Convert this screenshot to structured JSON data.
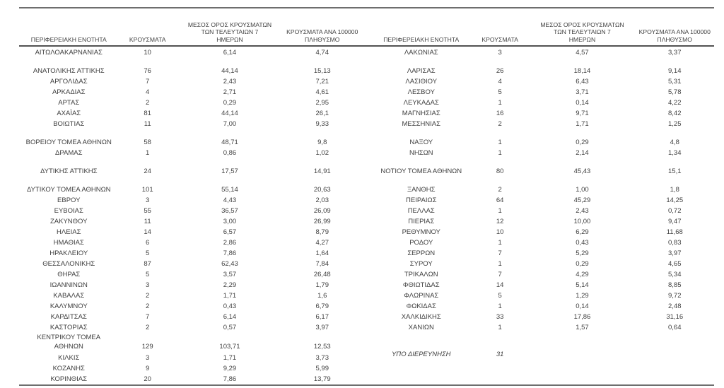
{
  "headers": {
    "region": "ΠΕΡΙΦΕΡΕΙΑΚΗ ΕΝΟΤΗΤΑ",
    "cases": "ΚΡΟΥΣΜΑΤΑ",
    "avg7": "ΜΕΣΟΣ ΟΡΟΣ ΚΡΟΥΣΜΑΤΩΝ\nΤΩΝ ΤΕΛΕΥΤΑΙΩΝ 7\nΗΜΕΡΩΝ",
    "per100k": "ΚΡΟΥΣΜΑΤΑ ΑΝΑ 100000\nΠΛΗΘΥΣΜΟ"
  },
  "left_rows": [
    {
      "region": "ΑΙΤΩΛΟΑΚΑΡΝΑΝΙΑΣ",
      "cases": "10",
      "avg7": "6,14",
      "per100k": "4,74"
    },
    {
      "type": "spacer"
    },
    {
      "region": "ΑΝΑΤΟΛΙΚΗΣ ΑΤΤΙΚΗΣ",
      "cases": "76",
      "avg7": "44,14",
      "per100k": "15,13"
    },
    {
      "region": "ΑΡΓΟΛΙΔΑΣ",
      "cases": "7",
      "avg7": "2,43",
      "per100k": "7,21"
    },
    {
      "region": "ΑΡΚΑΔΙΑΣ",
      "cases": "4",
      "avg7": "2,71",
      "per100k": "4,61"
    },
    {
      "region": "ΑΡΤΑΣ",
      "cases": "2",
      "avg7": "0,29",
      "per100k": "2,95"
    },
    {
      "region": "ΑΧΑΪΑΣ",
      "cases": "81",
      "avg7": "44,14",
      "per100k": "26,1"
    },
    {
      "region": "ΒΟΙΩΤΙΑΣ",
      "cases": "11",
      "avg7": "7,00",
      "per100k": "9,33"
    },
    {
      "type": "spacer"
    },
    {
      "region": "ΒΟΡΕΙΟΥ ΤΟΜΕΑ ΑΘΗΝΩΝ",
      "cases": "58",
      "avg7": "48,71",
      "per100k": "9,8"
    },
    {
      "region": "ΔΡΑΜΑΣ",
      "cases": "1",
      "avg7": "0,86",
      "per100k": "1,02"
    },
    {
      "type": "spacer"
    },
    {
      "region": "ΔΥΤΙΚΗΣ ΑΤΤΙΚΗΣ",
      "cases": "24",
      "avg7": "17,57",
      "per100k": "14,91"
    },
    {
      "type": "spacer"
    },
    {
      "region": "ΔΥΤΙΚΟΥ ΤΟΜΕΑ ΑΘΗΝΩΝ",
      "cases": "101",
      "avg7": "55,14",
      "per100k": "20,63"
    },
    {
      "region": "ΕΒΡΟΥ",
      "cases": "3",
      "avg7": "4,43",
      "per100k": "2,03"
    },
    {
      "region": "ΕΥΒΟΙΑΣ",
      "cases": "55",
      "avg7": "36,57",
      "per100k": "26,09"
    },
    {
      "region": "ΖΑΚΥΝΘΟΥ",
      "cases": "11",
      "avg7": "3,00",
      "per100k": "26,99"
    },
    {
      "region": "ΗΛΕΙΑΣ",
      "cases": "14",
      "avg7": "6,57",
      "per100k": "8,79"
    },
    {
      "region": "ΗΜΑΘΙΑΣ",
      "cases": "6",
      "avg7": "2,86",
      "per100k": "4,27"
    },
    {
      "region": "ΗΡΑΚΛΕΙΟΥ",
      "cases": "5",
      "avg7": "7,86",
      "per100k": "1,64"
    },
    {
      "region": "ΘΕΣΣΑΛΟΝΙΚΗΣ",
      "cases": "87",
      "avg7": "62,43",
      "per100k": "7,84"
    },
    {
      "region": "ΘΗΡΑΣ",
      "cases": "5",
      "avg7": "3,57",
      "per100k": "26,48"
    },
    {
      "region": "ΙΩΑΝΝΙΝΩΝ",
      "cases": "3",
      "avg7": "2,29",
      "per100k": "1,79"
    },
    {
      "region": "ΚΑΒΑΛΑΣ",
      "cases": "2",
      "avg7": "1,71",
      "per100k": "1,6"
    },
    {
      "region": "ΚΑΛΥΜΝΟΥ",
      "cases": "2",
      "avg7": "0,43",
      "per100k": "6,79"
    },
    {
      "region": "ΚΑΡΔΙΤΣΑΣ",
      "cases": "7",
      "avg7": "6,14",
      "per100k": "6,17"
    },
    {
      "region": "ΚΑΣΤΟΡΙΑΣ",
      "cases": "2",
      "avg7": "0,57",
      "per100k": "3,97"
    },
    {
      "type": "twoline",
      "region": "ΚΕΝΤΡΙΚΟΥ ΤΟΜΕΑ\nΑΘΗΝΩΝ",
      "cases": "129",
      "avg7": "103,71",
      "per100k": "12,53"
    },
    {
      "region": "ΚΙΛΚΙΣ",
      "cases": "3",
      "avg7": "1,71",
      "per100k": "3,73"
    },
    {
      "region": "ΚΟΖΑΝΗΣ",
      "cases": "9",
      "avg7": "9,29",
      "per100k": "5,99"
    },
    {
      "region": "ΚΟΡΙΝΘΙΑΣ",
      "cases": "20",
      "avg7": "7,86",
      "per100k": "13,79"
    }
  ],
  "right_rows": [
    {
      "region": "ΛΑΚΩΝΙΑΣ",
      "cases": "3",
      "avg7": "4,57",
      "per100k": "3,37"
    },
    {
      "type": "spacer"
    },
    {
      "region": "ΛΑΡΙΣΑΣ",
      "cases": "26",
      "avg7": "18,14",
      "per100k": "9,14"
    },
    {
      "region": "ΛΑΣΙΘΙΟΥ",
      "cases": "4",
      "avg7": "6,43",
      "per100k": "5,31"
    },
    {
      "region": "ΛΕΣΒΟΥ",
      "cases": "5",
      "avg7": "3,71",
      "per100k": "5,78"
    },
    {
      "region": "ΛΕΥΚΑΔΑΣ",
      "cases": "1",
      "avg7": "0,14",
      "per100k": "4,22"
    },
    {
      "region": "ΜΑΓΝΗΣΙΑΣ",
      "cases": "16",
      "avg7": "9,71",
      "per100k": "8,42"
    },
    {
      "region": "ΜΕΣΣΗΝΙΑΣ",
      "cases": "2",
      "avg7": "1,71",
      "per100k": "1,25"
    },
    {
      "type": "spacer"
    },
    {
      "region": "ΝΑΞΟΥ",
      "cases": "1",
      "avg7": "0,29",
      "per100k": "4,8"
    },
    {
      "region": "ΝΗΣΩΝ",
      "cases": "1",
      "avg7": "2,14",
      "per100k": "1,34"
    },
    {
      "type": "spacer"
    },
    {
      "region": "ΝΟΤΙΟΥ ΤΟΜΕΑ ΑΘΗΝΩΝ",
      "cases": "80",
      "avg7": "45,43",
      "per100k": "15,1"
    },
    {
      "type": "spacer"
    },
    {
      "region": "ΞΑΝΘΗΣ",
      "cases": "2",
      "avg7": "1,00",
      "per100k": "1,8"
    },
    {
      "region": "ΠΕΙΡΑΙΩΣ",
      "cases": "64",
      "avg7": "45,29",
      "per100k": "14,25"
    },
    {
      "region": "ΠΕΛΛΑΣ",
      "cases": "1",
      "avg7": "2,43",
      "per100k": "0,72"
    },
    {
      "region": "ΠΙΕΡΙΑΣ",
      "cases": "12",
      "avg7": "10,00",
      "per100k": "9,47"
    },
    {
      "region": "ΡΕΘΥΜΝΟΥ",
      "cases": "10",
      "avg7": "6,29",
      "per100k": "11,68"
    },
    {
      "region": "ΡΟΔΟΥ",
      "cases": "1",
      "avg7": "0,43",
      "per100k": "0,83"
    },
    {
      "region": "ΣΕΡΡΩΝ",
      "cases": "7",
      "avg7": "5,29",
      "per100k": "3,97"
    },
    {
      "region": "ΣΥΡΟΥ",
      "cases": "1",
      "avg7": "0,29",
      "per100k": "4,65"
    },
    {
      "region": "ΤΡΙΚΑΛΩΝ",
      "cases": "7",
      "avg7": "4,29",
      "per100k": "5,34"
    },
    {
      "region": "ΦΘΙΩΤΙΔΑΣ",
      "cases": "14",
      "avg7": "5,14",
      "per100k": "8,85"
    },
    {
      "region": "ΦΛΩΡΙΝΑΣ",
      "cases": "5",
      "avg7": "1,29",
      "per100k": "9,72"
    },
    {
      "region": "ΦΩΚΙΔΑΣ",
      "cases": "1",
      "avg7": "0,14",
      "per100k": "2,48"
    },
    {
      "region": "ΧΑΛΚΙΔΙΚΗΣ",
      "cases": "33",
      "avg7": "17,86",
      "per100k": "31,16"
    },
    {
      "region": "ΧΑΝΙΩΝ",
      "cases": "1",
      "avg7": "1,57",
      "per100k": "0,64"
    },
    {
      "type": "spacer"
    },
    {
      "type": "twoline",
      "em": true,
      "region": "ΥΠΟ ΔΙΕΡΕΥΝΗΣΗ",
      "cases": "31",
      "avg7": "",
      "per100k": ""
    }
  ]
}
